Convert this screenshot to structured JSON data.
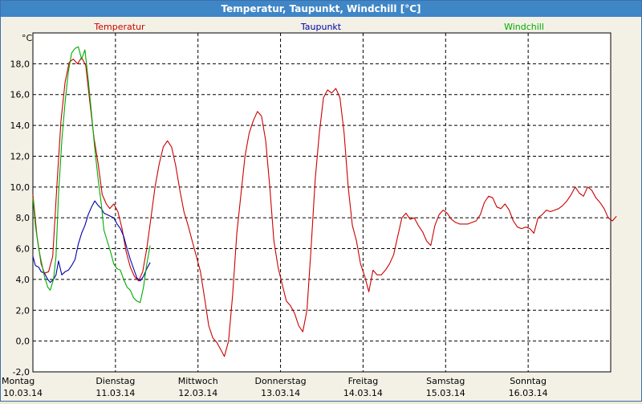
{
  "window": {
    "title": "Temperatur, Taupunkt, Windchill [°C]"
  },
  "chart_data": {
    "type": "line",
    "ylabel": "°C",
    "ylim": [
      -2,
      20
    ],
    "yticks": [
      {
        "value": -2,
        "label": "-2,0"
      },
      {
        "value": 0,
        "label": "0,0"
      },
      {
        "value": 2,
        "label": "2,0"
      },
      {
        "value": 4,
        "label": "4,0"
      },
      {
        "value": 6,
        "label": "6,0"
      },
      {
        "value": 8,
        "label": "8,0"
      },
      {
        "value": 10,
        "label": "10,0"
      },
      {
        "value": 12,
        "label": "12,0"
      },
      {
        "value": 14,
        "label": "14,0"
      },
      {
        "value": 16,
        "label": "16,0"
      },
      {
        "value": 18,
        "label": "18,0"
      }
    ],
    "xlim": [
      0,
      7
    ],
    "xunit": "days since 10.03.14 00:00",
    "xticks": [
      {
        "value": 0,
        "day": "Montag",
        "date": "10.03.14"
      },
      {
        "value": 1,
        "day": "Dienstag",
        "date": "11.03.14"
      },
      {
        "value": 2,
        "day": "Mittwoch",
        "date": "12.03.14"
      },
      {
        "value": 3,
        "day": "Donnerstag",
        "date": "13.03.14"
      },
      {
        "value": 4,
        "day": "Freitag",
        "date": "14.03.14"
      },
      {
        "value": 5,
        "day": "Samstag",
        "date": "15.03.14"
      },
      {
        "value": 6,
        "day": "Sonntag",
        "date": "16.03.14"
      }
    ],
    "grid": true,
    "legend_position": "top",
    "series": [
      {
        "name": "Temperatur",
        "color": "#cc0000",
        "points": [
          [
            0.0,
            9.5
          ],
          [
            0.05,
            6.8
          ],
          [
            0.1,
            5.0
          ],
          [
            0.14,
            4.4
          ],
          [
            0.19,
            4.5
          ],
          [
            0.24,
            5.5
          ],
          [
            0.29,
            10.0
          ],
          [
            0.34,
            14.3
          ],
          [
            0.39,
            16.8
          ],
          [
            0.44,
            18.1
          ],
          [
            0.49,
            18.3
          ],
          [
            0.54,
            18.0
          ],
          [
            0.59,
            18.4
          ],
          [
            0.64,
            17.9
          ],
          [
            0.69,
            15.5
          ],
          [
            0.74,
            13.2
          ],
          [
            0.79,
            11.5
          ],
          [
            0.84,
            9.5
          ],
          [
            0.89,
            8.9
          ],
          [
            0.93,
            8.6
          ],
          [
            0.98,
            8.9
          ],
          [
            1.03,
            8.4
          ],
          [
            1.08,
            7.3
          ],
          [
            1.13,
            5.8
          ],
          [
            1.18,
            4.8
          ],
          [
            1.23,
            4.2
          ],
          [
            1.28,
            3.9
          ],
          [
            1.33,
            4.5
          ],
          [
            1.38,
            6.0
          ],
          [
            1.43,
            8.0
          ],
          [
            1.48,
            10.0
          ],
          [
            1.53,
            11.5
          ],
          [
            1.58,
            12.6
          ],
          [
            1.63,
            13.0
          ],
          [
            1.68,
            12.6
          ],
          [
            1.73,
            11.4
          ],
          [
            1.78,
            9.8
          ],
          [
            1.83,
            8.4
          ],
          [
            1.88,
            7.5
          ],
          [
            1.93,
            6.5
          ],
          [
            1.98,
            5.5
          ],
          [
            2.03,
            4.5
          ],
          [
            2.08,
            2.8
          ],
          [
            2.13,
            1.0
          ],
          [
            2.18,
            0.2
          ],
          [
            2.23,
            -0.1
          ],
          [
            2.28,
            -0.6
          ],
          [
            2.32,
            -1.0
          ],
          [
            2.37,
            0.0
          ],
          [
            2.42,
            3.0
          ],
          [
            2.47,
            7.0
          ],
          [
            2.52,
            9.5
          ],
          [
            2.57,
            12.0
          ],
          [
            2.62,
            13.5
          ],
          [
            2.67,
            14.3
          ],
          [
            2.72,
            14.9
          ],
          [
            2.77,
            14.6
          ],
          [
            2.82,
            13.0
          ],
          [
            2.87,
            10.0
          ],
          [
            2.92,
            6.5
          ],
          [
            2.97,
            4.8
          ],
          [
            3.02,
            3.7
          ],
          [
            3.07,
            2.6
          ],
          [
            3.12,
            2.3
          ],
          [
            3.17,
            1.8
          ],
          [
            3.22,
            1.0
          ],
          [
            3.27,
            0.6
          ],
          [
            3.32,
            2.0
          ],
          [
            3.37,
            6.0
          ],
          [
            3.42,
            10.5
          ],
          [
            3.47,
            13.5
          ],
          [
            3.52,
            15.8
          ],
          [
            3.57,
            16.3
          ],
          [
            3.62,
            16.1
          ],
          [
            3.67,
            16.4
          ],
          [
            3.72,
            15.8
          ],
          [
            3.77,
            13.5
          ],
          [
            3.82,
            10.0
          ],
          [
            3.87,
            7.5
          ],
          [
            3.92,
            6.5
          ],
          [
            3.97,
            5.0
          ],
          [
            4.02,
            4.2
          ],
          [
            4.07,
            3.2
          ],
          [
            4.12,
            4.6
          ],
          [
            4.17,
            4.3
          ],
          [
            4.22,
            4.3
          ],
          [
            4.27,
            4.6
          ],
          [
            4.32,
            5.0
          ],
          [
            4.37,
            5.6
          ],
          [
            4.42,
            6.8
          ],
          [
            4.47,
            8.0
          ],
          [
            4.52,
            8.3
          ],
          [
            4.57,
            7.9
          ],
          [
            4.62,
            8.0
          ],
          [
            4.67,
            7.5
          ],
          [
            4.72,
            7.1
          ],
          [
            4.77,
            6.5
          ],
          [
            4.82,
            6.2
          ],
          [
            4.87,
            7.5
          ],
          [
            4.92,
            8.2
          ],
          [
            4.97,
            8.5
          ],
          [
            5.02,
            8.3
          ],
          [
            5.07,
            7.9
          ],
          [
            5.12,
            7.7
          ],
          [
            5.17,
            7.6
          ],
          [
            5.22,
            7.6
          ],
          [
            5.27,
            7.6
          ],
          [
            5.32,
            7.7
          ],
          [
            5.37,
            7.8
          ],
          [
            5.42,
            8.2
          ],
          [
            5.47,
            9.0
          ],
          [
            5.52,
            9.4
          ],
          [
            5.57,
            9.3
          ],
          [
            5.62,
            8.7
          ],
          [
            5.67,
            8.6
          ],
          [
            5.72,
            8.9
          ],
          [
            5.77,
            8.5
          ],
          [
            5.82,
            7.8
          ],
          [
            5.87,
            7.4
          ],
          [
            5.92,
            7.3
          ],
          [
            5.97,
            7.4
          ],
          [
            6.02,
            7.3
          ],
          [
            6.07,
            7.0
          ],
          [
            6.12,
            8.0
          ],
          [
            6.17,
            8.2
          ],
          [
            6.22,
            8.5
          ],
          [
            6.27,
            8.4
          ],
          [
            6.32,
            8.5
          ],
          [
            6.37,
            8.6
          ],
          [
            6.42,
            8.8
          ],
          [
            6.47,
            9.1
          ],
          [
            6.52,
            9.5
          ],
          [
            6.57,
            10.0
          ],
          [
            6.62,
            9.6
          ],
          [
            6.67,
            9.4
          ],
          [
            6.72,
            10.0
          ],
          [
            6.77,
            9.8
          ],
          [
            6.82,
            9.3
          ],
          [
            6.87,
            9.0
          ],
          [
            6.92,
            8.6
          ],
          [
            6.97,
            8.0
          ],
          [
            7.02,
            7.8
          ],
          [
            7.07,
            8.1
          ]
        ]
      },
      {
        "name": "Taupunkt",
        "color": "#0000aa",
        "points": [
          [
            0.0,
            5.5
          ],
          [
            0.03,
            4.9
          ],
          [
            0.07,
            4.8
          ],
          [
            0.1,
            4.5
          ],
          [
            0.14,
            4.4
          ],
          [
            0.18,
            4.0
          ],
          [
            0.21,
            3.8
          ],
          [
            0.25,
            4.0
          ],
          [
            0.28,
            4.3
          ],
          [
            0.31,
            5.2
          ],
          [
            0.35,
            4.3
          ],
          [
            0.39,
            4.5
          ],
          [
            0.43,
            4.6
          ],
          [
            0.47,
            4.9
          ],
          [
            0.51,
            5.3
          ],
          [
            0.55,
            6.3
          ],
          [
            0.59,
            7.0
          ],
          [
            0.63,
            7.5
          ],
          [
            0.67,
            8.2
          ],
          [
            0.71,
            8.7
          ],
          [
            0.75,
            9.1
          ],
          [
            0.79,
            8.8
          ],
          [
            0.83,
            8.6
          ],
          [
            0.86,
            8.3
          ],
          [
            0.9,
            8.2
          ],
          [
            0.94,
            8.1
          ],
          [
            0.98,
            8.0
          ],
          [
            1.02,
            7.6
          ],
          [
            1.06,
            7.3
          ],
          [
            1.1,
            6.8
          ],
          [
            1.14,
            6.0
          ],
          [
            1.18,
            5.3
          ],
          [
            1.22,
            4.7
          ],
          [
            1.26,
            4.1
          ],
          [
            1.3,
            3.9
          ],
          [
            1.34,
            4.2
          ],
          [
            1.38,
            4.7
          ],
          [
            1.42,
            5.1
          ]
        ]
      },
      {
        "name": "Windchill",
        "color": "#00aa00",
        "points": [
          [
            0.0,
            9.3
          ],
          [
            0.03,
            7.5
          ],
          [
            0.07,
            6.0
          ],
          [
            0.1,
            5.2
          ],
          [
            0.14,
            4.2
          ],
          [
            0.18,
            3.5
          ],
          [
            0.21,
            3.3
          ],
          [
            0.25,
            4.0
          ],
          [
            0.28,
            5.5
          ],
          [
            0.31,
            9.5
          ],
          [
            0.35,
            13.0
          ],
          [
            0.39,
            15.5
          ],
          [
            0.43,
            17.5
          ],
          [
            0.47,
            18.7
          ],
          [
            0.51,
            19.0
          ],
          [
            0.55,
            19.1
          ],
          [
            0.59,
            18.3
          ],
          [
            0.63,
            18.9
          ],
          [
            0.67,
            17.0
          ],
          [
            0.71,
            14.8
          ],
          [
            0.75,
            12.5
          ],
          [
            0.79,
            10.5
          ],
          [
            0.83,
            8.8
          ],
          [
            0.86,
            7.2
          ],
          [
            0.9,
            6.5
          ],
          [
            0.94,
            5.8
          ],
          [
            0.98,
            5.0
          ],
          [
            1.02,
            4.7
          ],
          [
            1.06,
            4.6
          ],
          [
            1.1,
            4.0
          ],
          [
            1.14,
            3.5
          ],
          [
            1.18,
            3.3
          ],
          [
            1.22,
            2.8
          ],
          [
            1.26,
            2.6
          ],
          [
            1.3,
            2.5
          ],
          [
            1.34,
            3.5
          ],
          [
            1.38,
            5.0
          ],
          [
            1.42,
            6.2
          ]
        ]
      }
    ]
  }
}
